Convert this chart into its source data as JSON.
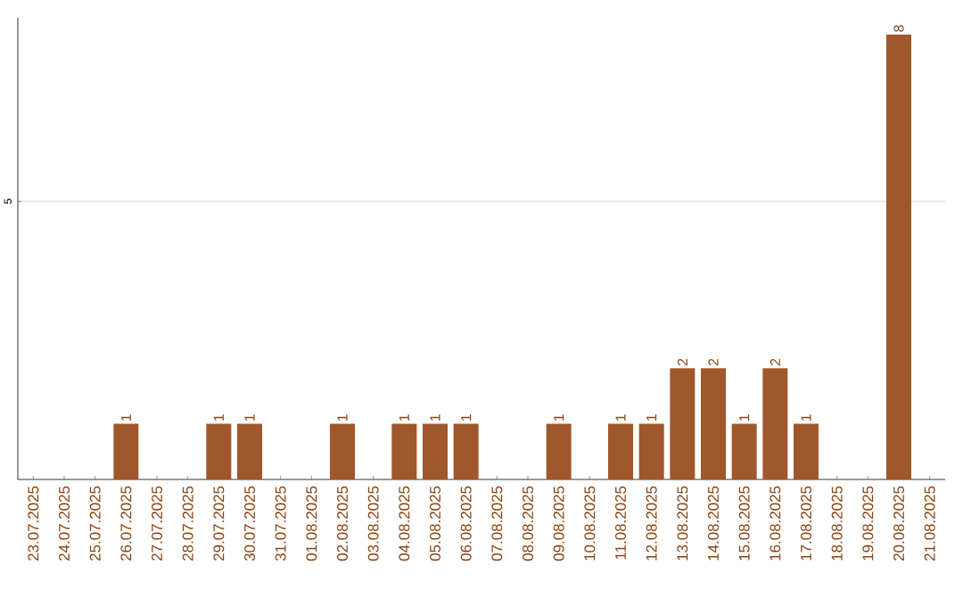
{
  "chart_data": {
    "type": "bar",
    "categories": [
      "23.07.2025",
      "24.07.2025",
      "25.07.2025",
      "26.07.2025",
      "27.07.2025",
      "28.07.2025",
      "29.07.2025",
      "30.07.2025",
      "31.07.2025",
      "01.08.2025",
      "02.08.2025",
      "03.08.2025",
      "04.08.2025",
      "05.08.2025",
      "06.08.2025",
      "07.08.2025",
      "08.08.2025",
      "09.08.2025",
      "10.08.2025",
      "11.08.2025",
      "12.08.2025",
      "13.08.2025",
      "14.08.2025",
      "15.08.2025",
      "16.08.2025",
      "17.08.2025",
      "18.08.2025",
      "19.08.2025",
      "20.08.2025",
      "21.08.2025"
    ],
    "values": [
      0,
      0,
      0,
      1,
      0,
      0,
      1,
      1,
      0,
      0,
      1,
      0,
      1,
      1,
      1,
      0,
      0,
      1,
      0,
      1,
      1,
      2,
      2,
      1,
      2,
      1,
      0,
      0,
      8,
      0
    ],
    "value_labels": [
      null,
      null,
      null,
      "1",
      null,
      null,
      "1",
      "1",
      null,
      null,
      "1",
      null,
      "1",
      "1",
      "1",
      null,
      null,
      "1",
      null,
      "1",
      "1",
      "2",
      "2",
      "1",
      "2",
      "1",
      null,
      null,
      "8",
      null
    ],
    "color": "#a0572b",
    "ylim": [
      0,
      8.3
    ],
    "yticks": [
      5
    ],
    "grid": "y"
  }
}
